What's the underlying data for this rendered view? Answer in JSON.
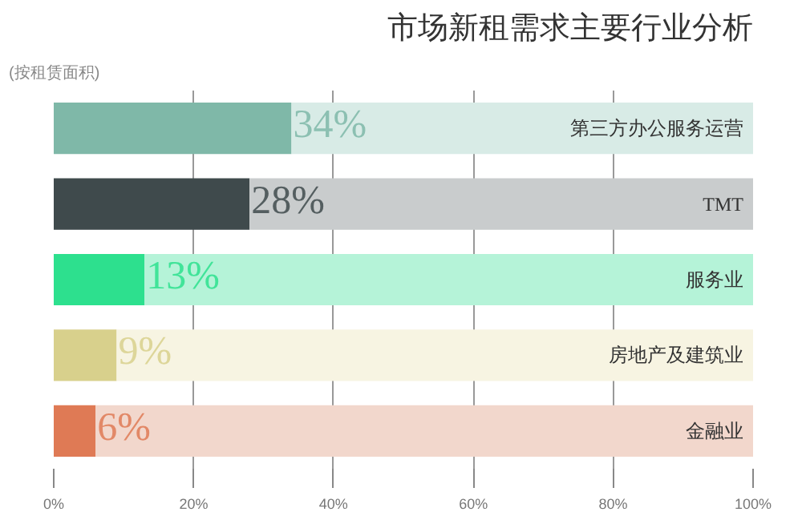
{
  "chart_data": {
    "type": "bar",
    "orientation": "horizontal",
    "stacked": true,
    "title": "市场新租需求主要行业分析",
    "subtitle": "(按租赁面积)",
    "categories": [
      "第三方办公服务运营",
      "TMT",
      "服务业",
      "房地产及建筑业",
      "金融业"
    ],
    "series": [
      {
        "colors": [
          "#7fb8a8",
          "#3f4a4c",
          "#2de08e",
          "#d8d08c",
          "#df7a55"
        ],
        "values": [
          34,
          28,
          13,
          9,
          6
        ],
        "value_labels": [
          "34%",
          "28%",
          "13%",
          "9%",
          "6%"
        ]
      },
      {
        "colors": [
          "#d8ebe6",
          "#c9cccd",
          "#b5f3d8",
          "#f7f4e2",
          "#f2d7cc"
        ],
        "values": [
          66,
          72,
          87,
          91,
          94
        ]
      }
    ],
    "xlim": [
      0,
      100
    ],
    "xticks": [
      {
        "value": 0,
        "label": "0%"
      },
      {
        "value": 20,
        "label": "20%"
      },
      {
        "value": 40,
        "label": "40%"
      },
      {
        "value": 60,
        "label": "60%"
      },
      {
        "value": 80,
        "label": "80%"
      },
      {
        "value": 100,
        "label": "100%"
      }
    ],
    "grid": "x"
  }
}
